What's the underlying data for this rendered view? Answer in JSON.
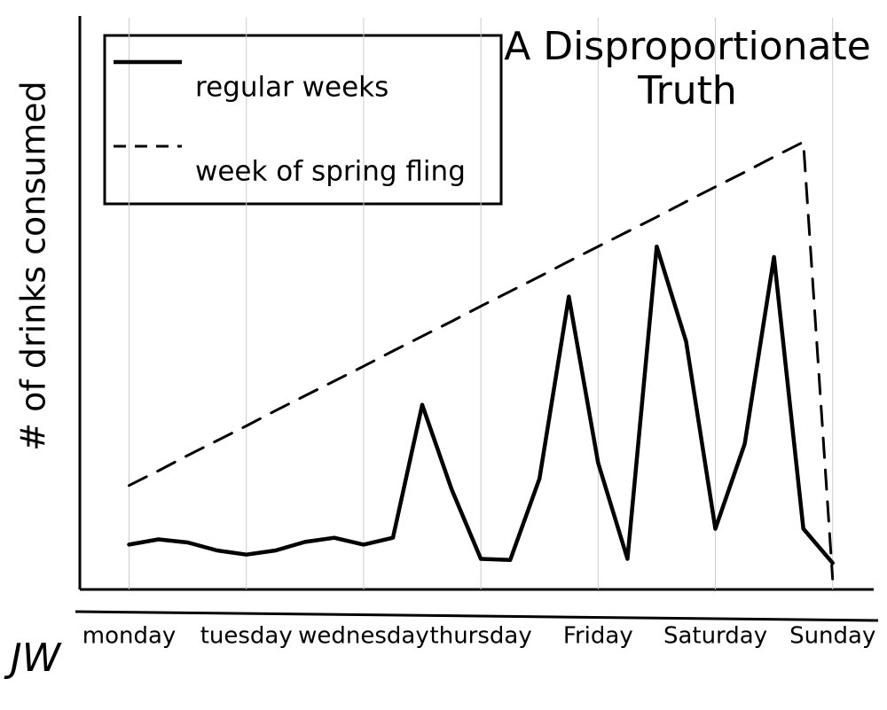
{
  "chart_data": {
    "type": "line",
    "title": "A Disproportionate Truth",
    "y_label": "# of drinks consumed",
    "annotations": [
      "JW"
    ],
    "x": [
      0,
      0.25,
      0.5,
      0.75,
      1,
      1.25,
      1.5,
      1.75,
      2,
      2.25,
      2.5,
      2.75,
      3,
      3.25,
      3.5,
      3.75,
      4,
      4.25,
      4.5,
      4.75,
      5,
      5.25,
      5.5,
      5.75,
      6
    ],
    "xlim": [
      -0.42,
      6.35
    ],
    "xticks": [
      {
        "value": 0,
        "label": "monday"
      },
      {
        "value": 1,
        "label": "tuesday"
      },
      {
        "value": 2,
        "label": "wednesday"
      },
      {
        "value": 3,
        "label": "thursday"
      },
      {
        "value": 4,
        "label": "Friday"
      },
      {
        "value": 5,
        "label": "Saturday"
      },
      {
        "value": 6,
        "label": "Sunday"
      }
    ],
    "ylim": [
      -5,
      100
    ],
    "grid": true,
    "legend": "top-left",
    "series": [
      {
        "name": "regular weeks",
        "color": "#000000",
        "style": "solid",
        "values": [
          3.5,
          4.5,
          3.9,
          2.4,
          1.6,
          2.4,
          4.0,
          4.8,
          3.5,
          4.8,
          30,
          14,
          0.8,
          0.6,
          16,
          50.5,
          19,
          0.8,
          60,
          42,
          6.5,
          22.6,
          58,
          6.5,
          0
        ]
      },
      {
        "name": "week of spring fling",
        "color": "#000000",
        "style": "dashed",
        "values": [
          14.7,
          17.5,
          20.4,
          23.2,
          26.0,
          28.9,
          31.7,
          34.5,
          37.3,
          40.2,
          43.0,
          45.8,
          48.7,
          51.5,
          54.3,
          57.2,
          60.0,
          62.8,
          65.6,
          68.5,
          71.3,
          74.1,
          77.0,
          79.8,
          -3
        ]
      }
    ]
  }
}
